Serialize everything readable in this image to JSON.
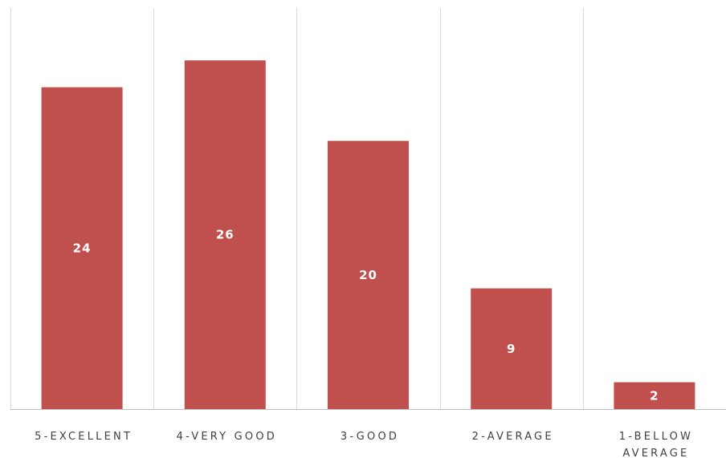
{
  "chart_data": {
    "type": "bar",
    "title": "",
    "xlabel": "",
    "ylabel": "",
    "categories": [
      "5-EXCELLENT",
      "4-VERY GOOD",
      "3-GOOD",
      "2-AVERAGE",
      "1-BELLOW AVERAGE"
    ],
    "category_lines": [
      [
        "5-EXCELLENT"
      ],
      [
        "4-VERY GOOD"
      ],
      [
        "3-GOOD"
      ],
      [
        "2-AVERAGE"
      ],
      [
        "1-BELLOW",
        "AVERAGE"
      ]
    ],
    "values": [
      24,
      26,
      20,
      9,
      2
    ],
    "value_labels": [
      "24",
      "26",
      "20",
      "9",
      "2"
    ],
    "ylim": [
      0,
      30
    ],
    "grid": "vertical category separators",
    "legend": "none",
    "colors": {
      "bar": "#C0504D",
      "gridline": "#D9D9D9",
      "axis": "#BFBFBF",
      "label_text": "#404040",
      "value_text": "#FFFFFF"
    }
  }
}
